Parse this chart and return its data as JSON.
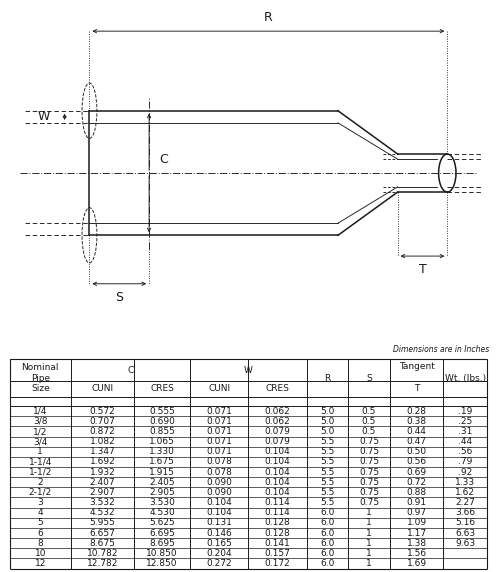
{
  "dimensions_note": "Dimensions are in Inches",
  "rows": [
    {
      "size": "1/4",
      "c_cuni": "0.572",
      "c_cres": "0.555",
      "w_cuni": "0.071",
      "w_cres": "0.062",
      "r": "5.0",
      "s": "0.5",
      "t": "0.28",
      "wt": ".19"
    },
    {
      "size": "3/8",
      "c_cuni": "0.707",
      "c_cres": "0.690",
      "w_cuni": "0.071",
      "w_cres": "0.062",
      "r": "5.0",
      "s": "0.5",
      "t": "0.38",
      "wt": ".25"
    },
    {
      "size": "1/2",
      "c_cuni": "0.872",
      "c_cres": "0.855",
      "w_cuni": "0.071",
      "w_cres": "0.079",
      "r": "5.0",
      "s": "0.5",
      "t": "0.44",
      "wt": ".31"
    },
    {
      "size": "3/4",
      "c_cuni": "1.082",
      "c_cres": "1.065",
      "w_cuni": "0.071",
      "w_cres": "0.079",
      "r": "5.5",
      "s": "0.75",
      "t": "0.47",
      "wt": ".44"
    },
    {
      "size": "1",
      "c_cuni": "1.347",
      "c_cres": "1.330",
      "w_cuni": "0.071",
      "w_cres": "0.104",
      "r": "5.5",
      "s": "0.75",
      "t": "0.50",
      "wt": ".56"
    },
    {
      "size": "1-1/4",
      "c_cuni": "1.692",
      "c_cres": "1.675",
      "w_cuni": "0.078",
      "w_cres": "0.104",
      "r": "5.5",
      "s": "0.75",
      "t": "0.56",
      "wt": ".79"
    },
    {
      "size": "1-1/2",
      "c_cuni": "1.932",
      "c_cres": "1.915",
      "w_cuni": "0.078",
      "w_cres": "0.104",
      "r": "5.5",
      "s": "0.75",
      "t": "0.69",
      "wt": ".92"
    },
    {
      "size": "2",
      "c_cuni": "2.407",
      "c_cres": "2.405",
      "w_cuni": "0.090",
      "w_cres": "0.104",
      "r": "5.5",
      "s": "0.75",
      "t": "0.72",
      "wt": "1.33"
    },
    {
      "size": "2-1/2",
      "c_cuni": "2.907",
      "c_cres": "2.905",
      "w_cuni": "0.090",
      "w_cres": "0.104",
      "r": "5.5",
      "s": "0.75",
      "t": "0.88",
      "wt": "1.62"
    },
    {
      "size": "3",
      "c_cuni": "3.532",
      "c_cres": "3.530",
      "w_cuni": "0.104",
      "w_cres": "0.114",
      "r": "5.5",
      "s": "0.75",
      "t": "0.91",
      "wt": "2.27"
    },
    {
      "size": "4",
      "c_cuni": "4.532",
      "c_cres": "4.530",
      "w_cuni": "0.104",
      "w_cres": "0.114",
      "r": "6.0",
      "s": "1",
      "t": "0.97",
      "wt": "3.66"
    },
    {
      "size": "5",
      "c_cuni": "5.955",
      "c_cres": "5.625",
      "w_cuni": "0.131",
      "w_cres": "0.128",
      "r": "6.0",
      "s": "1",
      "t": "1.09",
      "wt": "5.16"
    },
    {
      "size": "6",
      "c_cuni": "6.657",
      "c_cres": "6.695",
      "w_cuni": "0.146",
      "w_cres": "0.128",
      "r": "6.0",
      "s": "1",
      "t": "1.17",
      "wt": "6.63"
    },
    {
      "size": "8",
      "c_cuni": "8.675",
      "c_cres": "8.695",
      "w_cuni": "0.165",
      "w_cres": "0.141",
      "r": "6.0",
      "s": "1",
      "t": "1.38",
      "wt": "9.63"
    },
    {
      "size": "10",
      "c_cuni": "10.782",
      "c_cres": "10.850",
      "w_cuni": "0.204",
      "w_cres": "0.157",
      "r": "6.0",
      "s": "1",
      "t": "1.56",
      "wt": ""
    },
    {
      "size": "12",
      "c_cuni": "12.782",
      "c_cres": "12.850",
      "w_cuni": "0.272",
      "w_cres": "0.172",
      "r": "6.0",
      "s": "1",
      "t": "1.69",
      "wt": ""
    }
  ],
  "bg_color": "#ffffff",
  "text_color": "#1a1a1a"
}
